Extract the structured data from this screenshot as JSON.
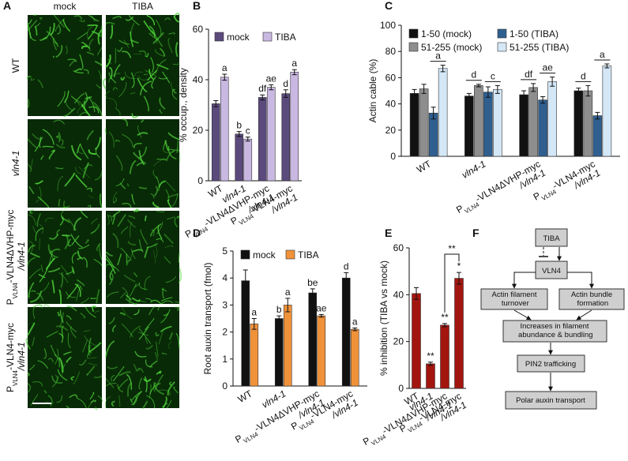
{
  "panels": [
    "A",
    "B",
    "C",
    "D",
    "E",
    "F"
  ],
  "image_panel": {
    "columns": [
      "mock",
      "TIBA"
    ],
    "rows": [
      "WT",
      "vln4-1",
      "PVLN4-VLN4ΔVHP-myc /vln4-1",
      "PVLN4-VLN4-myc /vln4-1"
    ]
  },
  "chart_data": [
    {
      "type": "bar",
      "ylabel": "% occup., density",
      "categories": [
        "WT",
        "vln4-1",
        "PVLN4-VLN4ΔVHP-myc /vln4-1",
        "PVLN4-VLN4-myc /vln4-1"
      ],
      "ylim": [
        0,
        60
      ],
      "yticks": [
        0,
        20,
        40,
        60
      ],
      "series": [
        {
          "name": "mock",
          "color": "#5b4a7c",
          "values": [
            30.5,
            18.5,
            33,
            34.5
          ],
          "errors": [
            1.2,
            1,
            1,
            1.5
          ],
          "labels": [
            null,
            "b",
            "df",
            "d"
          ]
        },
        {
          "name": "TIBA",
          "color": "#c9b8e2",
          "values": [
            41,
            16.5,
            37,
            43
          ],
          "errors": [
            1.2,
            0.8,
            1,
            1
          ],
          "labels": [
            "a",
            "c",
            "ae",
            "a"
          ]
        }
      ]
    },
    {
      "type": "bar",
      "ylabel": "Actin cable (%)",
      "categories": [
        "WT",
        "vln4-1",
        "PVLN4-VLN4ΔVHP-myc /vln4-1",
        "PVLN4-VLN4-myc /vln4-1"
      ],
      "ylim": [
        0,
        100
      ],
      "yticks": [
        0,
        20,
        40,
        60,
        80,
        100
      ],
      "series": [
        {
          "name": "1-50 (mock)",
          "color": "#111111",
          "values": [
            48,
            46,
            47,
            50
          ],
          "errors": [
            3,
            2,
            3,
            2
          ],
          "labels": [
            null,
            null,
            null,
            null
          ]
        },
        {
          "name": "51-255 (mock)",
          "color": "#8e8e8e",
          "values": [
            51.5,
            54,
            52.5,
            50
          ],
          "errors": [
            3.5,
            1,
            3,
            4
          ],
          "labels": [
            null,
            null,
            null,
            null
          ]
        },
        {
          "name": "1-50 (TIBA)",
          "color": "#2e5f8f",
          "values": [
            33,
            49,
            43,
            31
          ],
          "errors": [
            4.5,
            4,
            2.5,
            2.5
          ],
          "labels": [
            null,
            null,
            null,
            null
          ]
        },
        {
          "name": "51-255 (TIBA)",
          "color": "#d3e7f7",
          "values": [
            67,
            51,
            57,
            69
          ],
          "errors": [
            2.5,
            3,
            3.5,
            1.5
          ],
          "labels": [
            null,
            null,
            null,
            null
          ]
        }
      ],
      "pair_labels": [
        [
          null,
          "a"
        ],
        [
          "d",
          "c"
        ],
        [
          "df",
          "ae"
        ],
        [
          "d",
          "a"
        ]
      ]
    },
    {
      "type": "bar",
      "ylabel": "Root auxin transport (fmol)",
      "categories": [
        "WT",
        "vln4-1",
        "PVLN4-VLN4ΔVHP-myc /vln4-1",
        "PVLN4-VLN4-myc /vln4-1"
      ],
      "ylim": [
        0,
        5
      ],
      "yticks": [
        0,
        1,
        2,
        3,
        4,
        5
      ],
      "series": [
        {
          "name": "mock",
          "color": "#111111",
          "values": [
            3.9,
            2.5,
            3.45,
            4.0
          ],
          "errors": [
            0.4,
            0.1,
            0.15,
            0.2
          ],
          "labels": [
            null,
            "b",
            "be",
            "d"
          ]
        },
        {
          "name": "TIBA",
          "color": "#f0923a",
          "values": [
            2.3,
            3.0,
            2.6,
            2.1
          ],
          "errors": [
            0.2,
            0.25,
            0.05,
            0.05
          ],
          "labels": [
            "a",
            "a",
            "ae",
            "a"
          ]
        }
      ]
    },
    {
      "type": "bar",
      "ylabel": "% inhibition (TIBA vs mock)",
      "categories": [
        "WT",
        "vln4-1",
        "PVLN4-VLN4ΔVHP-myc /vln4-1",
        "PVLN4-VLN4-myc /vln4-1"
      ],
      "ylim": [
        0,
        60
      ],
      "yticks": [
        0,
        20,
        40,
        60
      ],
      "series": [
        {
          "color": "#a3160f",
          "values": [
            40.5,
            10.5,
            27,
            47
          ],
          "errors": [
            2.5,
            0.7,
            0.7,
            2.5
          ],
          "labels": [
            null,
            "**",
            "**",
            "*"
          ]
        }
      ],
      "bracket_label": "**"
    }
  ],
  "diagram": {
    "nodes": [
      {
        "label": "TIBA"
      },
      {
        "label": "VLN4"
      },
      {
        "label": "Actin filament turnover"
      },
      {
        "label": "Actin bundle formation"
      },
      {
        "label": "Increases in filament abundance & bundling"
      },
      {
        "label": "PIN2 trafficking"
      },
      {
        "label": "Polar auxin transport"
      }
    ]
  }
}
